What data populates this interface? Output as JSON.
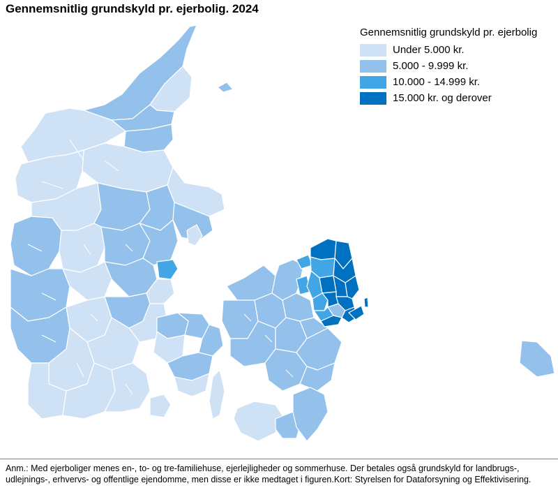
{
  "title": "Gennemsnitlig grundskyld pr. ejerbolig. 2024",
  "legend": {
    "title": "Gennemsnitlig grundskyld pr. ejerbolig",
    "items": [
      {
        "label": "Under 5.000 kr.",
        "color": "#cfe1f5"
      },
      {
        "label": "5.000 - 9.999 kr.",
        "color": "#93c1eb"
      },
      {
        "label": "10.000 - 14.999 kr.",
        "color": "#42a5e6"
      },
      {
        "label": "15.000 kr. og derover",
        "color": "#0070c0"
      }
    ]
  },
  "note": "Anm.: Med ejerboliger menes en-, to- og tre-familiehuse, ejerlejligheder og sommerhuse. Der betales også grundskyld for landbrugs-, udlejnings-, erhvervs- og offentlige ejendomme, men disse er ikke medtaget i figuren.Kort: Styrelsen for Dataforsyning og Effektivisering."
}
